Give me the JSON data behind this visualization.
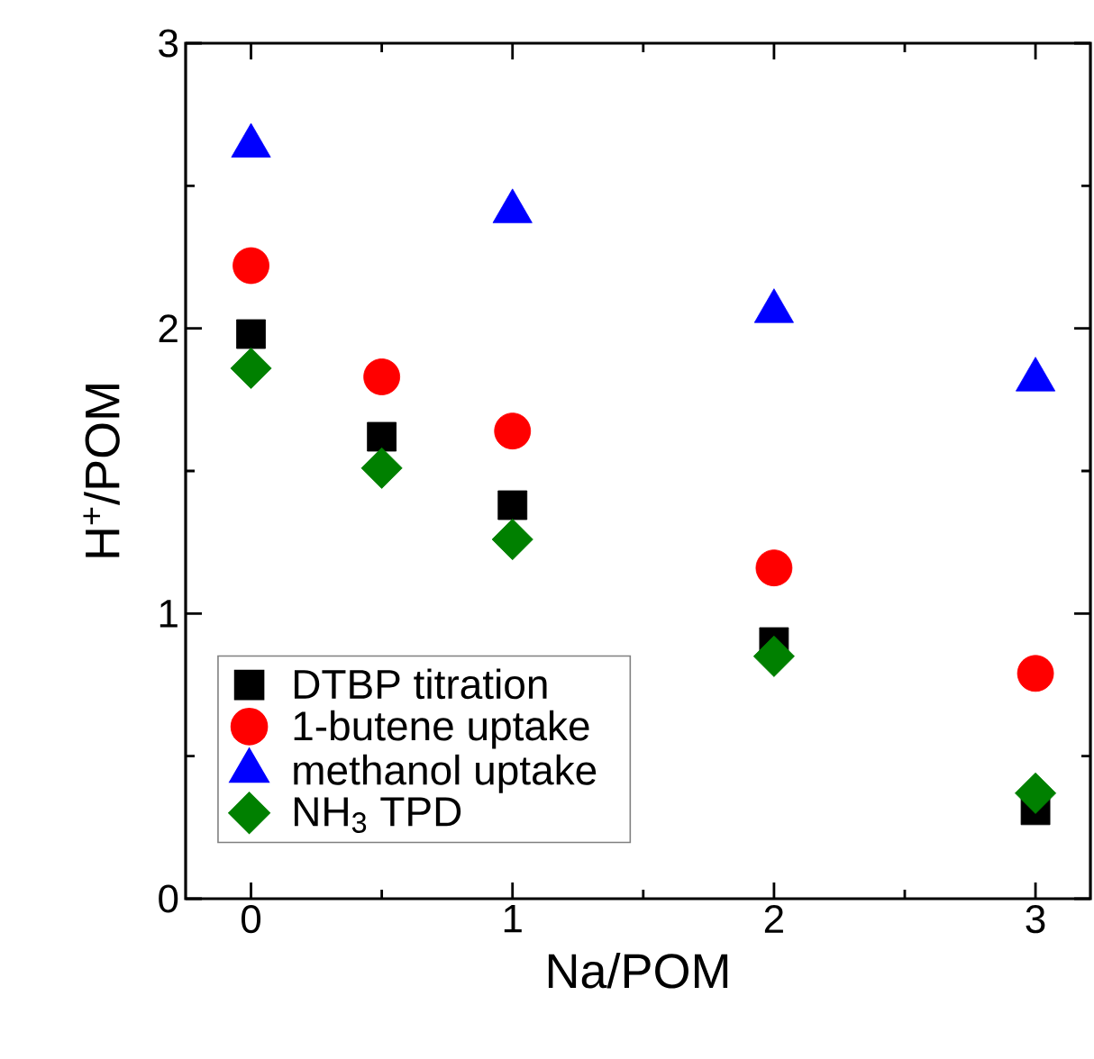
{
  "chart_data": {
    "type": "scatter",
    "xlabel": "Na/POM",
    "ylabel": "H$^{+}$/POM",
    "xlim": [
      -0.25,
      3.21
    ],
    "ylim": [
      0,
      3
    ],
    "xticks": [
      0,
      1,
      2,
      3
    ],
    "yticks": [
      0,
      1,
      2,
      3
    ],
    "legend": "bottom left",
    "grid": false,
    "series": [
      {
        "name": "DTBP titration",
        "color": "#000000",
        "marker": "square",
        "x": [
          0,
          0.5,
          1,
          2,
          3
        ],
        "values": [
          1.98,
          1.62,
          1.38,
          0.9,
          0.31
        ]
      },
      {
        "name": "1-butene uptake",
        "color": "#ff0000",
        "marker": "circle",
        "x": [
          0,
          0.5,
          1,
          2,
          3
        ],
        "values": [
          2.22,
          1.83,
          1.64,
          1.16,
          0.79
        ]
      },
      {
        "name": "methanol uptake",
        "color": "#0000ff",
        "marker": "triangle",
        "x": [
          0,
          1,
          2,
          3
        ],
        "values": [
          2.64,
          2.41,
          2.06,
          1.82
        ]
      },
      {
        "name": "NH$_{3}$ TPD",
        "color": "#008000",
        "marker": "diamond",
        "x": [
          0,
          0.5,
          1,
          2,
          3
        ],
        "values": [
          1.86,
          1.51,
          1.26,
          0.85,
          0.37
        ]
      }
    ]
  }
}
